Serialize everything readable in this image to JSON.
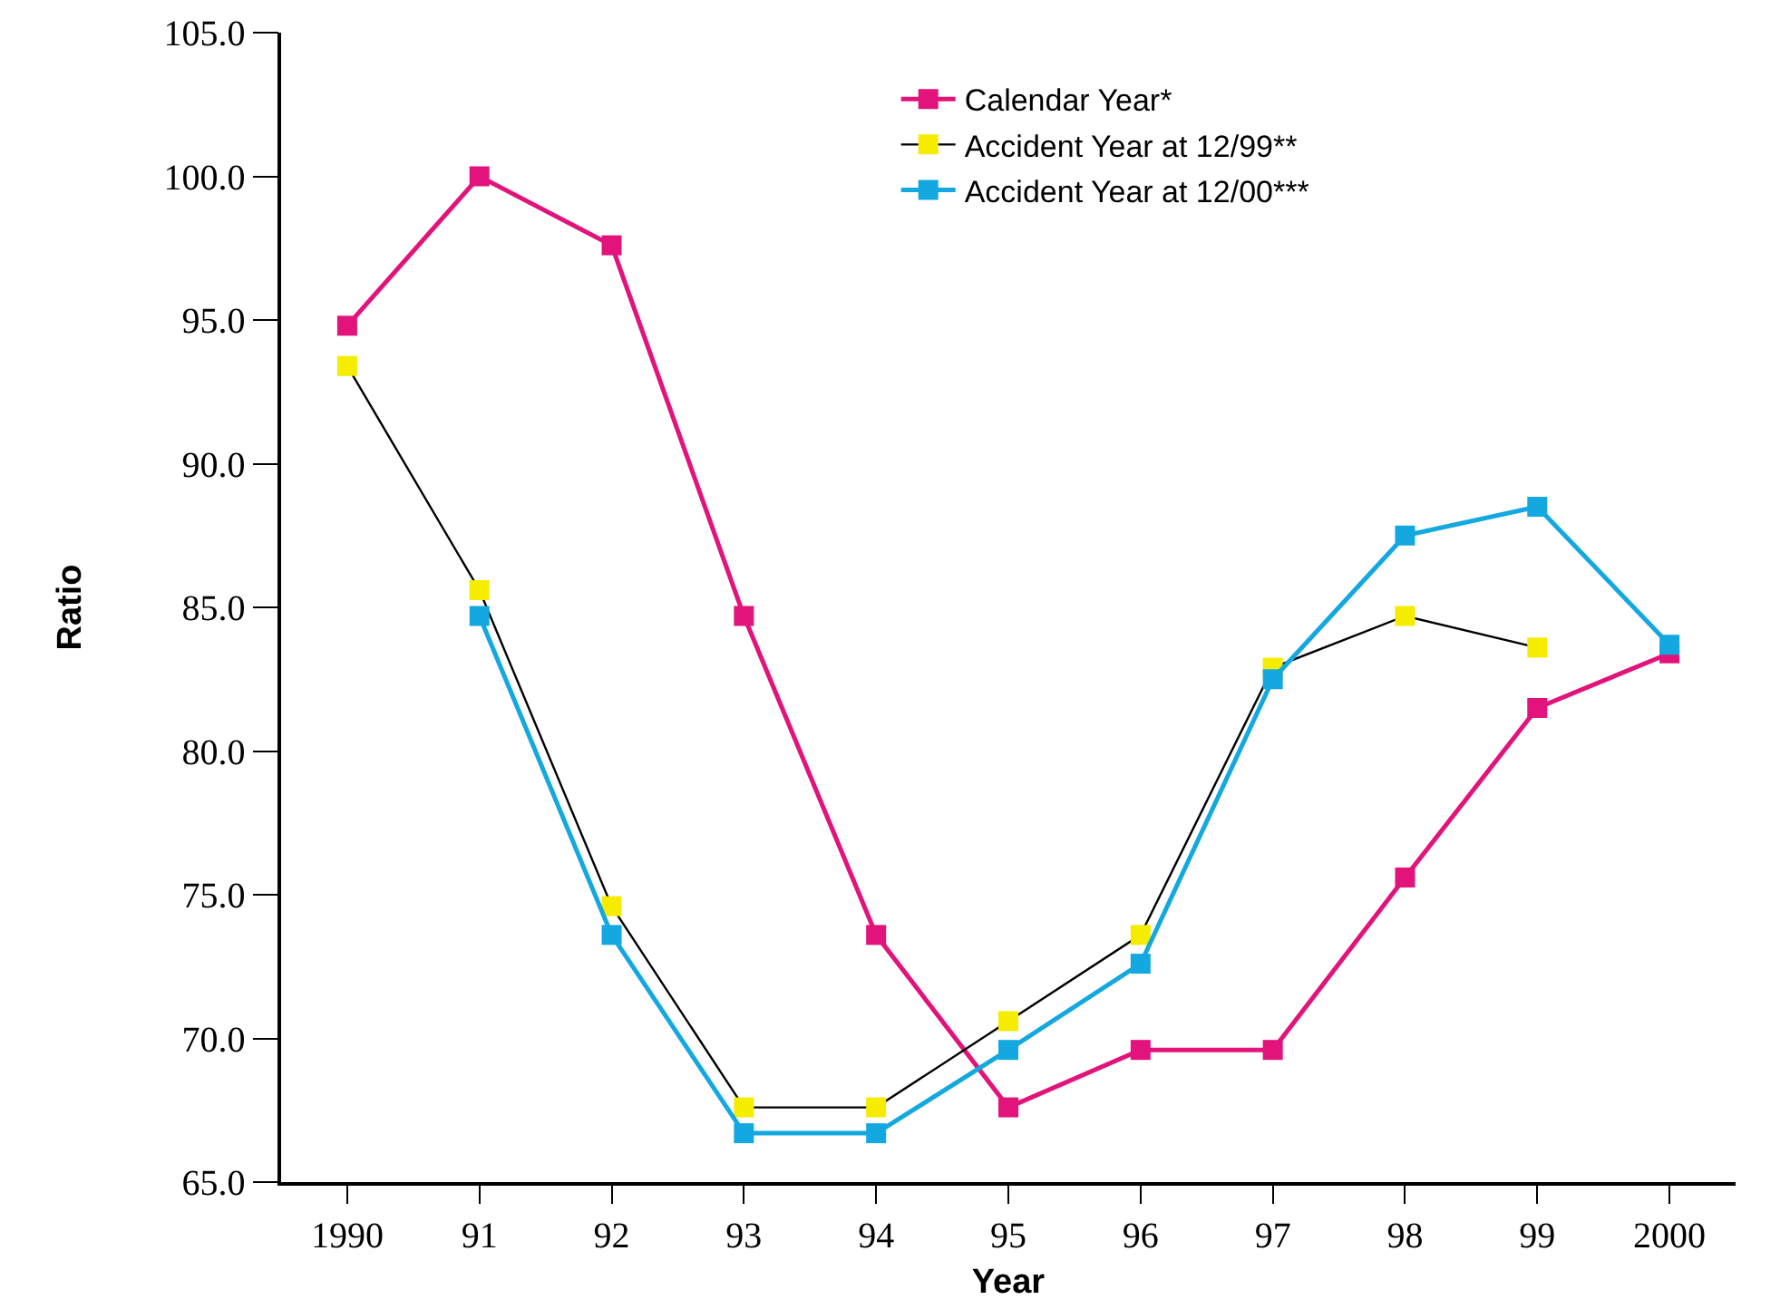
{
  "chart_data": {
    "type": "line",
    "xlabel": "Year",
    "ylabel": "Ratio",
    "categories": [
      "1990",
      "91",
      "92",
      "93",
      "94",
      "95",
      "96",
      "97",
      "98",
      "99",
      "2000"
    ],
    "series": [
      {
        "name": "Calendar Year*",
        "color": "#e2137a",
        "values": [
          94.8,
          100.0,
          97.6,
          84.7,
          73.6,
          67.6,
          69.6,
          69.6,
          75.6,
          81.5,
          83.4
        ]
      },
      {
        "name": "Accident Year at 12/99**",
        "color": "#f5ec00",
        "values": [
          93.4,
          85.6,
          74.6,
          67.6,
          67.6,
          70.6,
          73.6,
          82.9,
          84.7,
          83.6,
          null
        ]
      },
      {
        "name": "Accident Year at 12/00***",
        "color": "#14a8e0",
        "values": [
          null,
          84.7,
          73.6,
          66.7,
          66.7,
          69.6,
          72.6,
          82.5,
          87.5,
          88.5,
          83.7
        ]
      }
    ],
    "ylim": [
      65,
      105
    ],
    "yticks": [
      {
        "value": 65,
        "label": "65.0"
      },
      {
        "value": 70,
        "label": "70.0"
      },
      {
        "value": 75,
        "label": "75.0"
      },
      {
        "value": 80,
        "label": "80.0"
      },
      {
        "value": 85,
        "label": "85.0"
      },
      {
        "value": 90,
        "label": "90.0"
      },
      {
        "value": 95,
        "label": "95.0"
      },
      {
        "value": 100,
        "label": "100.0"
      },
      {
        "value": 105,
        "label": "105.0"
      }
    ],
    "grid": false,
    "legend": "top right",
    "marker": "square",
    "line_style": "solid"
  }
}
